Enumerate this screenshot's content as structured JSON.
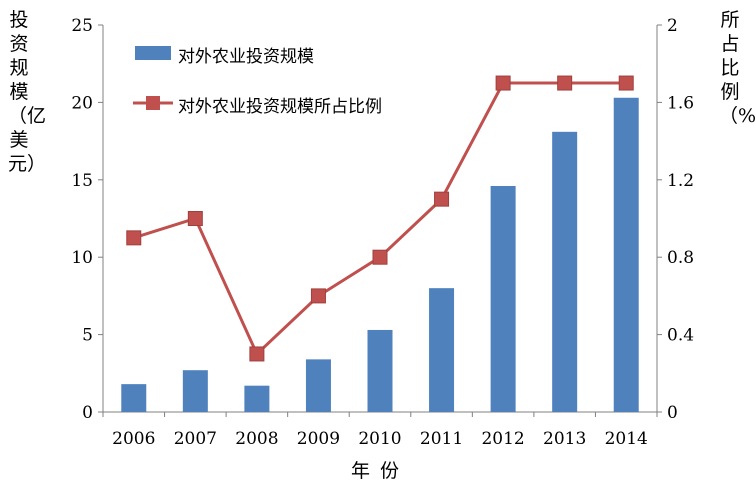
{
  "chart_data": {
    "type": "bar",
    "categories": [
      "2006",
      "2007",
      "2008",
      "2009",
      "2010",
      "2011",
      "2012",
      "2013",
      "2014"
    ],
    "series": [
      {
        "name": "对外农业投资规模",
        "type": "bar",
        "axis": "left",
        "color": "#4F81BD",
        "values": [
          1.8,
          2.7,
          1.7,
          3.4,
          5.3,
          8.0,
          14.6,
          18.1,
          20.3
        ]
      },
      {
        "name": "对外农业投资规模所占比例",
        "type": "line",
        "axis": "right",
        "color": "#C0504D",
        "values": [
          0.9,
          1.0,
          0.3,
          0.6,
          0.8,
          1.1,
          1.7,
          1.7,
          1.7
        ]
      }
    ],
    "xlabel": "年份",
    "ylabel": "投资规模（亿美元）",
    "y2label": "所占比例（%）",
    "ylim": [
      0,
      25
    ],
    "y2lim": [
      0,
      2
    ],
    "yticks": [
      "0",
      "5",
      "10",
      "15",
      "20",
      "25"
    ],
    "y2ticks": [
      "0",
      "0.4",
      "0.8",
      "1.2",
      "1.6",
      "2"
    ],
    "grid": false,
    "legend": "top-left"
  }
}
